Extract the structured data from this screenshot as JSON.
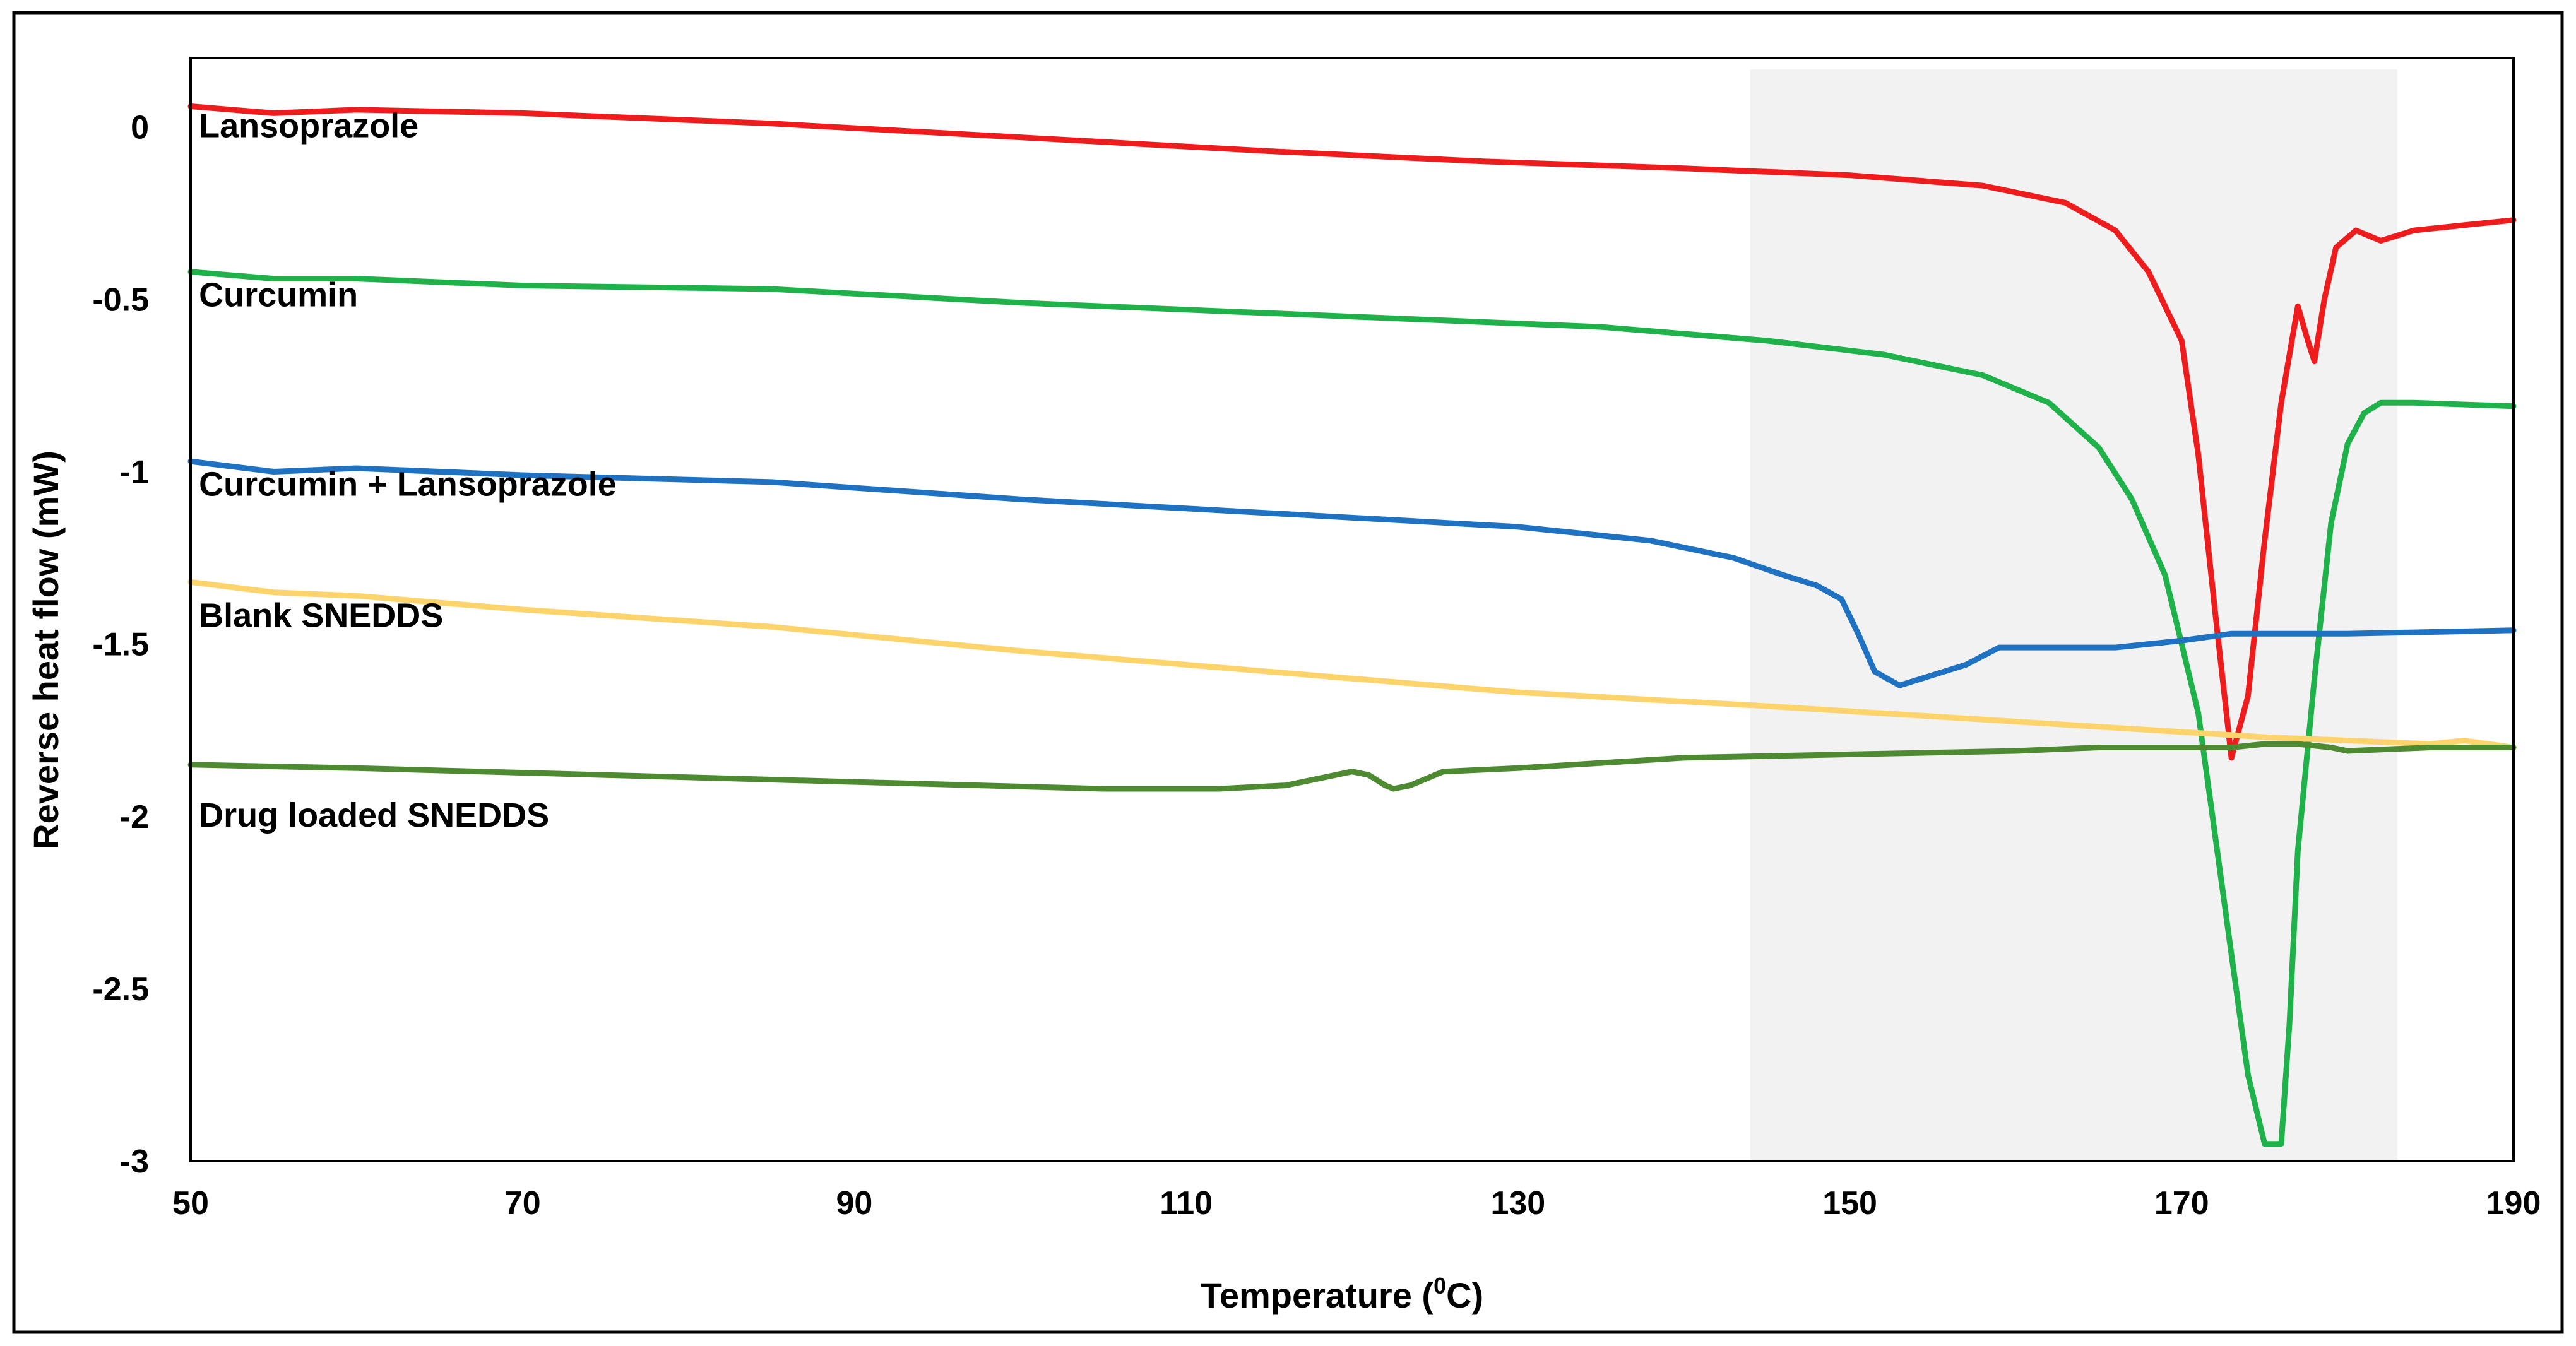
{
  "chart_data": {
    "type": "line",
    "title": "",
    "xlabel": "Temperature (",
    "xlabel_sup": "0",
    "xlabel_end": "C)",
    "ylabel": "Reverse heat flow (mW)",
    "xlim": [
      50,
      190
    ],
    "ylim": [
      -3,
      0.2
    ],
    "grid": false,
    "x_ticks": [
      "50",
      "70",
      "90",
      "110",
      "130",
      "150",
      "170",
      "190"
    ],
    "y_ticks": [
      "0",
      "-0.5",
      "-1",
      "-1.5",
      "-2",
      "-2.5",
      "-3"
    ],
    "x_tick_values": [
      50,
      70,
      90,
      110,
      130,
      150,
      170,
      190
    ],
    "y_tick_values": [
      0,
      -0.5,
      -1,
      -1.5,
      -2,
      -2.5,
      -3
    ],
    "highlight_region": {
      "x_start": 144,
      "x_end": 183,
      "color": "#f2f2f2"
    },
    "series": [
      {
        "name": "Lansoprazole",
        "label_anchor": [
          50.5,
          -0.03
        ],
        "color": "#ee1c1c",
        "points": [
          [
            50,
            0.06
          ],
          [
            55,
            0.04
          ],
          [
            60,
            0.05
          ],
          [
            70,
            0.04
          ],
          [
            85,
            0.01
          ],
          [
            100,
            -0.03
          ],
          [
            115,
            -0.07
          ],
          [
            128,
            -0.1
          ],
          [
            140,
            -0.12
          ],
          [
            150,
            -0.14
          ],
          [
            158,
            -0.17
          ],
          [
            163,
            -0.22
          ],
          [
            166,
            -0.3
          ],
          [
            168,
            -0.42
          ],
          [
            170,
            -0.62
          ],
          [
            171,
            -0.95
          ],
          [
            172,
            -1.4
          ],
          [
            173,
            -1.83
          ],
          [
            174,
            -1.65
          ],
          [
            175,
            -1.2
          ],
          [
            176,
            -0.8
          ],
          [
            177,
            -0.52
          ],
          [
            177.6,
            -0.62
          ],
          [
            178,
            -0.68
          ],
          [
            178.6,
            -0.5
          ],
          [
            179.3,
            -0.35
          ],
          [
            180.5,
            -0.3
          ],
          [
            182,
            -0.33
          ],
          [
            184,
            -0.3
          ],
          [
            190,
            -0.27
          ]
        ]
      },
      {
        "name": "Curcumin",
        "label_anchor": [
          50.5,
          -0.52
        ],
        "color": "#20b24a",
        "points": [
          [
            50,
            -0.42
          ],
          [
            55,
            -0.44
          ],
          [
            60,
            -0.44
          ],
          [
            70,
            -0.46
          ],
          [
            85,
            -0.47
          ],
          [
            100,
            -0.51
          ],
          [
            120,
            -0.55
          ],
          [
            135,
            -0.58
          ],
          [
            145,
            -0.62
          ],
          [
            152,
            -0.66
          ],
          [
            158,
            -0.72
          ],
          [
            162,
            -0.8
          ],
          [
            165,
            -0.93
          ],
          [
            167,
            -1.08
          ],
          [
            169,
            -1.3
          ],
          [
            171,
            -1.7
          ],
          [
            172,
            -2.05
          ],
          [
            173,
            -2.4
          ],
          [
            174,
            -2.75
          ],
          [
            175,
            -2.95
          ],
          [
            176,
            -2.95
          ],
          [
            176.5,
            -2.6
          ],
          [
            177,
            -2.1
          ],
          [
            178,
            -1.6
          ],
          [
            179,
            -1.15
          ],
          [
            180,
            -0.92
          ],
          [
            181,
            -0.83
          ],
          [
            182,
            -0.8
          ],
          [
            184,
            -0.8
          ],
          [
            190,
            -0.81
          ]
        ]
      },
      {
        "name": "Curcumin + Lansoprazole",
        "label_anchor": [
          50.5,
          -1.07
        ],
        "color": "#1f72c2",
        "points": [
          [
            50,
            -0.97
          ],
          [
            55,
            -1.0
          ],
          [
            60,
            -0.99
          ],
          [
            70,
            -1.01
          ],
          [
            85,
            -1.03
          ],
          [
            100,
            -1.08
          ],
          [
            115,
            -1.12
          ],
          [
            130,
            -1.16
          ],
          [
            138,
            -1.2
          ],
          [
            143,
            -1.25
          ],
          [
            146,
            -1.3
          ],
          [
            148,
            -1.33
          ],
          [
            149.5,
            -1.37
          ],
          [
            150.5,
            -1.47
          ],
          [
            151.5,
            -1.58
          ],
          [
            153,
            -1.62
          ],
          [
            155,
            -1.59
          ],
          [
            157,
            -1.56
          ],
          [
            159,
            -1.51
          ],
          [
            162,
            -1.51
          ],
          [
            166,
            -1.51
          ],
          [
            170,
            -1.49
          ],
          [
            173,
            -1.47
          ],
          [
            180,
            -1.47
          ],
          [
            190,
            -1.46
          ]
        ]
      },
      {
        "name": "Blank SNEDDS",
        "label_anchor": [
          50.5,
          -1.45
        ],
        "color": "#fdd46b",
        "points": [
          [
            50,
            -1.32
          ],
          [
            55,
            -1.35
          ],
          [
            60,
            -1.36
          ],
          [
            70,
            -1.4
          ],
          [
            85,
            -1.45
          ],
          [
            100,
            -1.52
          ],
          [
            115,
            -1.58
          ],
          [
            130,
            -1.64
          ],
          [
            145,
            -1.68
          ],
          [
            155,
            -1.71
          ],
          [
            165,
            -1.74
          ],
          [
            175,
            -1.77
          ],
          [
            185,
            -1.79
          ],
          [
            187,
            -1.78
          ],
          [
            190,
            -1.8
          ]
        ]
      },
      {
        "name": "Drug loaded SNEDDS",
        "label_anchor": [
          50.5,
          -2.03
        ],
        "color": "#4d8a32",
        "points": [
          [
            50,
            -1.85
          ],
          [
            60,
            -1.86
          ],
          [
            75,
            -1.88
          ],
          [
            90,
            -1.9
          ],
          [
            105,
            -1.92
          ],
          [
            112,
            -1.92
          ],
          [
            116,
            -1.91
          ],
          [
            118,
            -1.89
          ],
          [
            120,
            -1.87
          ],
          [
            121,
            -1.88
          ],
          [
            122,
            -1.91
          ],
          [
            122.5,
            -1.92
          ],
          [
            123.5,
            -1.91
          ],
          [
            124.5,
            -1.89
          ],
          [
            125.5,
            -1.87
          ],
          [
            130,
            -1.86
          ],
          [
            140,
            -1.83
          ],
          [
            150,
            -1.82
          ],
          [
            160,
            -1.81
          ],
          [
            165,
            -1.8
          ],
          [
            170,
            -1.8
          ],
          [
            173,
            -1.8
          ],
          [
            175,
            -1.79
          ],
          [
            177,
            -1.79
          ],
          [
            179,
            -1.8
          ],
          [
            180,
            -1.81
          ],
          [
            185,
            -1.8
          ],
          [
            190,
            -1.8
          ]
        ]
      }
    ]
  }
}
